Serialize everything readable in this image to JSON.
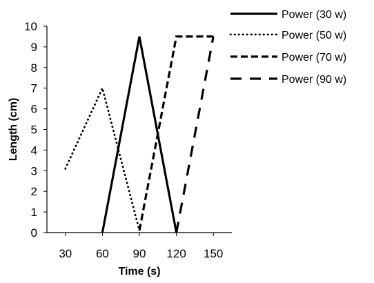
{
  "chart_data": {
    "type": "line",
    "title": "",
    "xlabel": "Time (s)",
    "ylabel": "Length (cm)",
    "x": [
      30,
      60,
      90,
      120,
      150
    ],
    "x_tick_labels": [
      "30",
      "60",
      "90",
      "120",
      "150"
    ],
    "y_tick_labels": [
      "0",
      "1",
      "2",
      "3",
      "4",
      "5",
      "6",
      "7",
      "8",
      "9",
      "10"
    ],
    "xlim": [
      15,
      165
    ],
    "ylim": [
      0,
      10
    ],
    "grid": false,
    "legend_position": "right",
    "series": [
      {
        "name": "Power (30 w)",
        "style": "solid",
        "x": [
          60,
          90,
          120
        ],
        "values": [
          0,
          9.5,
          0
        ]
      },
      {
        "name": "Power (50 w)",
        "style": "dotted",
        "x": [
          30,
          60,
          90
        ],
        "values": [
          3.1,
          7.0,
          0.1
        ]
      },
      {
        "name": "Power (70 w)",
        "style": "dashed",
        "x": [
          90,
          120,
          150
        ],
        "values": [
          0.1,
          9.5,
          9.5
        ]
      },
      {
        "name": "Power (90 w)",
        "style": "long-dashed",
        "x": [
          120,
          150
        ],
        "values": [
          0,
          9.5
        ]
      }
    ],
    "line_color": "#000000"
  }
}
